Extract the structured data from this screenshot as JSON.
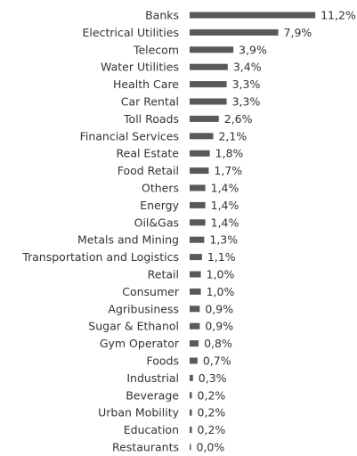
{
  "chart_data": {
    "type": "bar",
    "orientation": "horizontal",
    "color": "#595959",
    "categories": [
      "Banks",
      "Electrical Utilities",
      "Telecom",
      "Water Utilities",
      "Health Care",
      "Car Rental",
      "Toll Roads",
      "Financial Services",
      "Real Estate",
      "Food Retail",
      "Others",
      "Energy",
      "Oil&Gas",
      "Metals and Mining",
      "Transportation and Logistics",
      "Retail",
      "Consumer",
      "Agribusiness",
      "Sugar & Ethanol",
      "Gym Operator",
      "Foods",
      "Industrial",
      "Beverage",
      "Urban Mobility",
      "Education",
      "Restaurants"
    ],
    "values": [
      11.2,
      7.9,
      3.9,
      3.4,
      3.3,
      3.3,
      2.6,
      2.1,
      1.8,
      1.7,
      1.4,
      1.4,
      1.4,
      1.3,
      1.1,
      1.0,
      1.0,
      0.9,
      0.9,
      0.8,
      0.7,
      0.3,
      0.2,
      0.2,
      0.2,
      0.0
    ],
    "value_labels": [
      "11,2%",
      "7,9%",
      "3,9%",
      "3,4%",
      "3,3%",
      "3,3%",
      "2,6%",
      "2,1%",
      "1,8%",
      "1,7%",
      "1,4%",
      "1,4%",
      "1,4%",
      "1,3%",
      "1,1%",
      "1,0%",
      "1,0%",
      "0,9%",
      "0,9%",
      "0,8%",
      "0,7%",
      "0,3%",
      "0,2%",
      "0,2%",
      "0,2%",
      "0,0%"
    ]
  }
}
